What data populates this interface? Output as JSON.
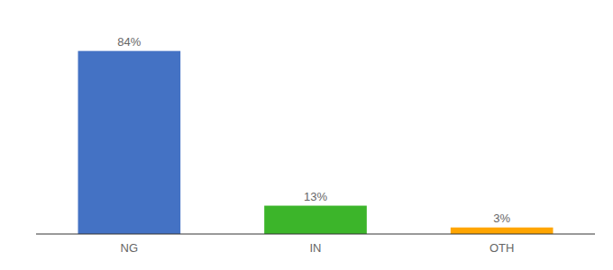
{
  "chart_data": {
    "type": "bar",
    "categories": [
      "NG",
      "IN",
      "OTH"
    ],
    "values": [
      84,
      13,
      3
    ],
    "value_labels": [
      "84%",
      "13%",
      "3%"
    ],
    "colors": [
      "#4472C4",
      "#3CB52A",
      "#FFA500"
    ],
    "ylim": [
      0,
      95
    ],
    "tick_labels": "x",
    "grid": false
  }
}
